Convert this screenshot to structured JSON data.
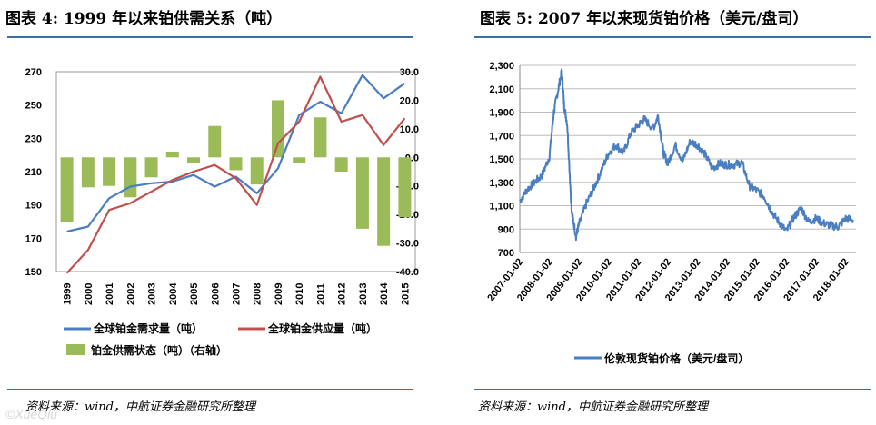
{
  "left": {
    "title": "图表 4:  1999 年以来铂供需关系（吨）",
    "source": "资料来源：wind，中航证券金融研究所整理"
  },
  "right": {
    "title": "图表 5:  2007 年以来现货铂价格（美元/盘司）",
    "source": "资料来源：wind，中航证券金融研究所整理"
  },
  "watermark": "©XueQiu",
  "colors": {
    "demand": "#4a7ec0",
    "supply": "#c0504d",
    "balance": "#9bbb59",
    "price": "#4a7ec0",
    "rule": "#3a6ea5"
  },
  "chart_data": [
    {
      "type": "bar+line",
      "title": "1999 年以来铂供需关系（吨）",
      "categories": [
        "1999",
        "2000",
        "2001",
        "2002",
        "2003",
        "2004",
        "2005",
        "2006",
        "2007",
        "2008",
        "2009",
        "2010",
        "2011",
        "2012",
        "2013",
        "2014",
        "2015"
      ],
      "left_axis": {
        "ylim": [
          150,
          270
        ],
        "ticks": [
          "270",
          "250",
          "230",
          "210",
          "190",
          "170",
          "150"
        ]
      },
      "right_axis": {
        "ylim": [
          -40,
          30
        ],
        "ticks": [
          "30.0",
          "20.0",
          "10.0",
          "0.0",
          "-10.0",
          "-20.0",
          "-30.0",
          "-40.0"
        ]
      },
      "series": [
        {
          "name": "全球铂金需求量（吨）",
          "type": "line",
          "axis": "left",
          "values": [
            174,
            177,
            194,
            201,
            203,
            204,
            208,
            201,
            207,
            197,
            212,
            244,
            252,
            245,
            268,
            254,
            263
          ]
        },
        {
          "name": "全球铂金供应量（吨）",
          "type": "line",
          "axis": "left",
          "values": [
            149,
            163,
            187,
            191,
            198,
            205,
            210,
            214,
            206,
            190,
            227,
            240,
            267,
            240,
            244,
            226,
            242
          ]
        },
        {
          "name": "铂金供需状态（吨）（右轴）",
          "type": "bar",
          "axis": "right",
          "values": [
            -22.5,
            -10.5,
            -10,
            -14,
            -7,
            2,
            -2,
            11,
            -4.5,
            -9.5,
            20,
            -2,
            14,
            -5,
            -25,
            -31,
            -21
          ]
        }
      ],
      "legend": "bottom"
    },
    {
      "type": "line",
      "title": "2007 年以来现货铂价格（美元/盘司）",
      "ylim": [
        700,
        2300
      ],
      "y_ticks": [
        "2,300",
        "2,100",
        "1,900",
        "1,700",
        "1,500",
        "1,300",
        "1,100",
        "900",
        "700"
      ],
      "x_ticks": [
        "2007-01-02",
        "2008-01-02",
        "2009-01-02",
        "2010-01-02",
        "2011-01-02",
        "2012-01-02",
        "2013-01-02",
        "2014-01-02",
        "2015-01-02",
        "2016-01-02",
        "2017-01-02",
        "2018-01-02"
      ],
      "series": [
        {
          "name": "伦敦现货铂价格（美元/盘司）",
          "x": [
            2007.0,
            2007.25,
            2007.5,
            2007.75,
            2008.0,
            2008.15,
            2008.3,
            2008.42,
            2008.5,
            2008.6,
            2008.75,
            2008.9,
            2009.0,
            2009.25,
            2009.5,
            2009.75,
            2010.0,
            2010.25,
            2010.5,
            2010.75,
            2011.0,
            2011.2,
            2011.5,
            2011.67,
            2011.85,
            2012.0,
            2012.25,
            2012.5,
            2012.75,
            2013.0,
            2013.25,
            2013.5,
            2013.75,
            2014.0,
            2014.25,
            2014.5,
            2014.75,
            2015.0,
            2015.25,
            2015.5,
            2015.75,
            2016.0,
            2016.25,
            2016.5,
            2016.75,
            2017.0,
            2017.25,
            2017.5,
            2017.75,
            2018.0,
            2018.25
          ],
          "values": [
            1140,
            1240,
            1300,
            1360,
            1520,
            1900,
            2100,
            2250,
            1950,
            1800,
            1050,
            840,
            940,
            1120,
            1250,
            1400,
            1550,
            1620,
            1550,
            1720,
            1790,
            1840,
            1760,
            1870,
            1550,
            1460,
            1620,
            1480,
            1650,
            1620,
            1540,
            1420,
            1460,
            1450,
            1450,
            1470,
            1270,
            1230,
            1180,
            1050,
            960,
            880,
            1000,
            1080,
            960,
            990,
            950,
            930,
            920,
            990,
            980
          ]
        }
      ],
      "legend": "bottom"
    }
  ]
}
